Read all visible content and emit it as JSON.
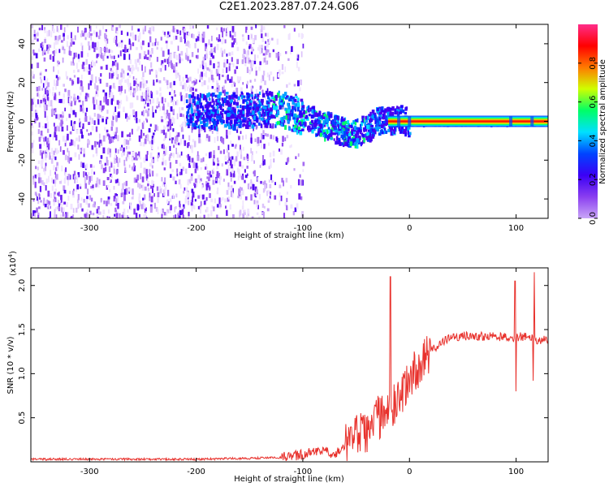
{
  "title": "C2E1.2023.287.07.24.G06",
  "colors": {
    "line": "#e8312c",
    "axis": "#000000",
    "background": "#ffffff"
  },
  "colorbar": {
    "label": "Normalized spectral amplitude",
    "ticks": [
      "0.0",
      "0.2",
      "0.4",
      "0.6",
      "0.8"
    ],
    "tick_values": [
      0,
      0.2,
      0.4,
      0.6,
      0.8
    ],
    "range": [
      0,
      1
    ],
    "colormap": [
      "#ffffff",
      "#c9a6f7",
      "#8a3ef0",
      "#3b00f5",
      "#0044ff",
      "#00e0ff",
      "#00ff66",
      "#cfff00",
      "#ff7a00",
      "#ff0000",
      "#ff2d8a"
    ]
  },
  "chart_data": [
    {
      "type": "heatmap",
      "xlabel": "Height of straight line (km)",
      "ylabel": "Frequency (Hz)",
      "xlim": [
        -355,
        130
      ],
      "ylim": [
        -50,
        50
      ],
      "xticks": [
        -300,
        -200,
        -100,
        0,
        100
      ],
      "xticklabels": [
        "-300",
        "-200",
        "-100",
        "0",
        "100"
      ],
      "yticks": [
        -40,
        -20,
        0,
        20,
        40
      ],
      "yticklabels": [
        "-40",
        "-20",
        "0",
        "20",
        "40"
      ],
      "description_points": {
        "noise_region_x": [
          -355,
          -130
        ],
        "signal_centerline": [
          {
            "x": -200,
            "y": 5
          },
          {
            "x": -150,
            "y": 6
          },
          {
            "x": -120,
            "y": 6
          },
          {
            "x": -100,
            "y": 2
          },
          {
            "x": -80,
            "y": -2
          },
          {
            "x": -60,
            "y": -6
          },
          {
            "x": -50,
            "y": -6
          },
          {
            "x": -40,
            "y": -3
          },
          {
            "x": -30,
            "y": 0
          },
          {
            "x": -10,
            "y": 1
          },
          {
            "x": 0,
            "y": 0
          },
          {
            "x": 50,
            "y": 0
          },
          {
            "x": 100,
            "y": 0
          },
          {
            "x": 130,
            "y": 0
          }
        ]
      }
    },
    {
      "type": "line",
      "xlabel": "Height of straight line (km)",
      "ylabel": "SNR (10 * v/v)",
      "yscale_label": "(x10",
      "yscale_exp": "4",
      "yscale_close": ")",
      "xlim": [
        -355,
        130
      ],
      "ylim": [
        0,
        2.2
      ],
      "xticks": [
        -300,
        -200,
        -100,
        0,
        100
      ],
      "xticklabels": [
        "-300",
        "-200",
        "-100",
        "0",
        "100"
      ],
      "yticks": [
        0.5,
        1.0,
        1.5,
        2.0
      ],
      "yticklabels": [
        "0.5",
        "1.0",
        "1.5",
        "2.0"
      ],
      "x": [
        -355,
        -300,
        -250,
        -200,
        -150,
        -120,
        -100,
        -90,
        -80,
        -70,
        -60,
        -50,
        -40,
        -30,
        -20,
        -10,
        0,
        10,
        20,
        30,
        40,
        60,
        80,
        90,
        95,
        100,
        110,
        115,
        120,
        130
      ],
      "y": [
        0.03,
        0.03,
        0.03,
        0.03,
        0.04,
        0.05,
        0.08,
        0.12,
        0.15,
        0.08,
        0.2,
        0.3,
        0.35,
        0.5,
        0.55,
        0.7,
        0.95,
        1.1,
        1.25,
        1.35,
        1.42,
        1.43,
        1.42,
        1.42,
        1.4,
        1.42,
        1.42,
        1.4,
        1.38,
        1.38
      ],
      "spikes": [
        {
          "x": -18,
          "y": 2.1
        },
        {
          "x": 99,
          "y": 2.05
        },
        {
          "x": 100,
          "y": 0.8
        },
        {
          "x": 117,
          "y": 2.15
        },
        {
          "x": 116,
          "y": 0.92
        }
      ]
    }
  ]
}
